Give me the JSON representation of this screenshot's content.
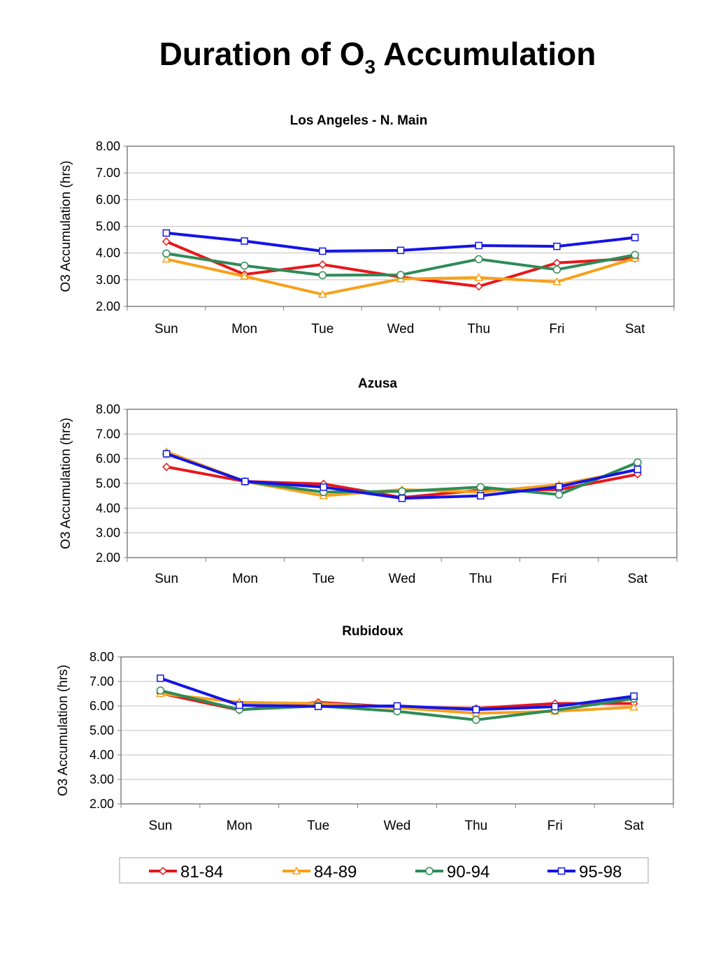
{
  "page": {
    "title_main": "Duration of O",
    "title_sub": "3",
    "title_rest": " Accumulation"
  },
  "colors": {
    "81-84": "#e8161a",
    "84-89": "#f7a11a",
    "90-94": "#2e8b57",
    "95-98": "#1414e6",
    "grid": "#c0c0c0",
    "frame": "#808080"
  },
  "legend": {
    "items": [
      {
        "name": "81-84",
        "marker": "diamond"
      },
      {
        "name": "84-89",
        "marker": "triangle"
      },
      {
        "name": "90-94",
        "marker": "circle"
      },
      {
        "name": "95-98",
        "marker": "square"
      }
    ]
  },
  "chart_data": [
    {
      "type": "line",
      "title": "Los Angeles - N. Main",
      "ylabel": "O3 Accumulation (hrs)",
      "xlabel": "",
      "ylim": [
        2.0,
        8.0
      ],
      "yticks": [
        "2.00",
        "3.00",
        "4.00",
        "5.00",
        "6.00",
        "7.00",
        "8.00"
      ],
      "categories": [
        "Sun",
        "Mon",
        "Tue",
        "Wed",
        "Thu",
        "Fri",
        "Sat"
      ],
      "grid": true,
      "series": [
        {
          "name": "81-84",
          "values": [
            4.43,
            3.2,
            3.57,
            3.1,
            2.75,
            3.63,
            3.8
          ]
        },
        {
          "name": "84-89",
          "values": [
            3.77,
            3.13,
            2.45,
            3.03,
            3.08,
            2.92,
            3.8
          ]
        },
        {
          "name": "90-94",
          "values": [
            3.98,
            3.53,
            3.17,
            3.18,
            3.77,
            3.38,
            3.93
          ]
        },
        {
          "name": "95-98",
          "values": [
            4.75,
            4.45,
            4.07,
            4.1,
            4.28,
            4.25,
            4.58
          ]
        }
      ]
    },
    {
      "type": "line",
      "title": "Azusa",
      "ylabel": "O3 Accumulation (hrs)",
      "xlabel": "",
      "ylim": [
        2.0,
        8.0
      ],
      "yticks": [
        "2.00",
        "3.00",
        "4.00",
        "5.00",
        "6.00",
        "7.00",
        "8.00"
      ],
      "categories": [
        "Sun",
        "Mon",
        "Tue",
        "Wed",
        "Thu",
        "Fri",
        "Sat"
      ],
      "grid": true,
      "series": [
        {
          "name": "81-84",
          "values": [
            5.67,
            5.08,
            4.98,
            4.43,
            4.73,
            4.75,
            5.37
          ]
        },
        {
          "name": "84-89",
          "values": [
            6.28,
            5.08,
            4.5,
            4.75,
            4.65,
            4.95,
            5.55
          ]
        },
        {
          "name": "90-94",
          "values": [
            6.2,
            5.08,
            4.65,
            4.68,
            4.85,
            4.55,
            5.85
          ]
        },
        {
          "name": "95-98",
          "values": [
            6.2,
            5.08,
            4.85,
            4.4,
            4.5,
            4.87,
            5.57
          ]
        }
      ]
    },
    {
      "type": "line",
      "title": "Rubidoux",
      "ylabel": "O3 Accumulation (hrs)",
      "xlabel": "",
      "ylim": [
        2.0,
        8.0
      ],
      "yticks": [
        "2.00",
        "3.00",
        "4.00",
        "5.00",
        "6.00",
        "7.00",
        "8.00"
      ],
      "categories": [
        "Sun",
        "Mon",
        "Tue",
        "Wed",
        "Thu",
        "Fri",
        "Sat"
      ],
      "grid": true,
      "series": [
        {
          "name": "81-84",
          "values": [
            6.52,
            5.83,
            6.15,
            5.95,
            5.9,
            6.1,
            6.1
          ]
        },
        {
          "name": "84-89",
          "values": [
            6.5,
            6.15,
            6.1,
            5.93,
            5.7,
            5.78,
            5.95
          ]
        },
        {
          "name": "90-94",
          "values": [
            6.63,
            5.85,
            6.0,
            5.78,
            5.43,
            5.82,
            6.3
          ]
        },
        {
          "name": "95-98",
          "values": [
            7.13,
            6.03,
            5.98,
            6.0,
            5.85,
            5.97,
            6.4
          ]
        }
      ]
    }
  ]
}
